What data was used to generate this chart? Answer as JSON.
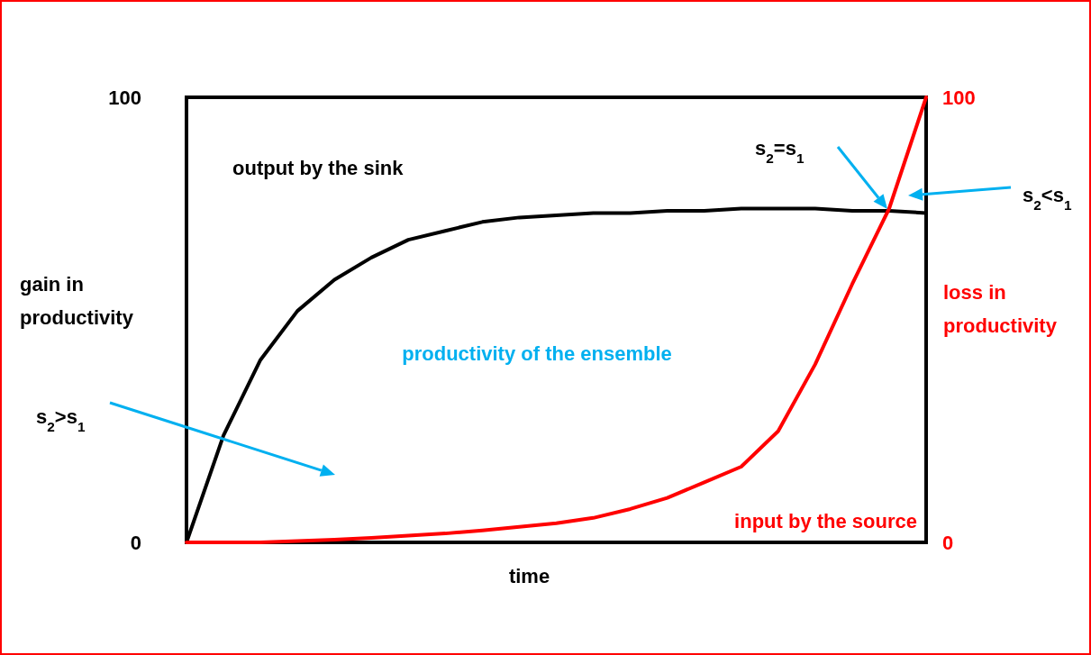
{
  "chart_data": {
    "type": "line",
    "xlabel": "time",
    "ylabel": "gain in productivity",
    "y2label": "loss in productivity",
    "categories": [
      null,
      null,
      null,
      null,
      null,
      null,
      null,
      null,
      null,
      null,
      null,
      null,
      null,
      null,
      null,
      null,
      null,
      null,
      null,
      null,
      null
    ],
    "series": [
      {
        "name": "output by the sink",
        "color": "#000000",
        "values": [
          0,
          24,
          41,
          52,
          59,
          64,
          68,
          70,
          72,
          73,
          73.5,
          74,
          74,
          74.5,
          74.5,
          75,
          75,
          75,
          74.5,
          74.5,
          74
        ]
      },
      {
        "name": "input by the source",
        "color": "#ff0000",
        "axis": "y2",
        "values": [
          0,
          0,
          0,
          0.3,
          0.6,
          1,
          1.5,
          2,
          2.7,
          3.5,
          4.3,
          5.5,
          7.5,
          10,
          13.5,
          17,
          25,
          40,
          58,
          75,
          100
        ]
      }
    ],
    "ylim": [
      0,
      100
    ],
    "yticks": [
      0,
      100
    ],
    "y2lim": [
      0,
      100
    ],
    "y2ticks": [
      0,
      100
    ],
    "annotations": [
      "productivity of the ensemble",
      "s$_{2}$>s$_{1}$",
      "s$_{2}$=s$_{1}$",
      "s$_{2}$<s$_{1}$"
    ]
  }
}
